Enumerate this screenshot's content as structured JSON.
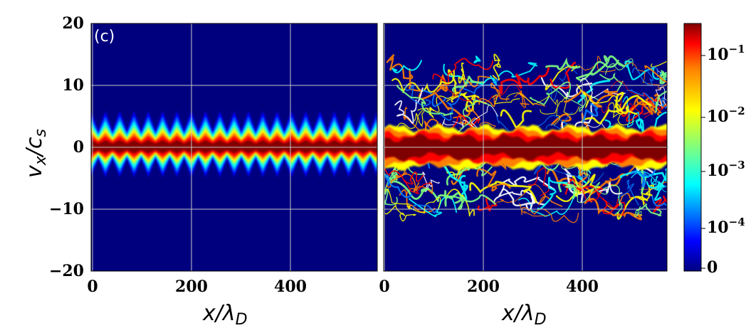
{
  "figure": {
    "panel_label": "(c)",
    "xlabel_main": "x/λ",
    "xlabel_sub": "D",
    "ylabel_main": "v",
    "ylabel_sub1": "x",
    "ylabel_slash": "/c",
    "ylabel_sub2": "s"
  },
  "colormap": [
    "#00007f",
    "#0000ff",
    "#007fff",
    "#00ffff",
    "#7fff7f",
    "#ffff00",
    "#ff7f00",
    "#ff0000",
    "#7f0000"
  ],
  "colorbar": {
    "scale": "log",
    "ticks": [
      {
        "base": "10",
        "exp": "−1"
      },
      {
        "base": "10",
        "exp": "−2"
      },
      {
        "base": "10",
        "exp": "−3"
      },
      {
        "base": "10",
        "exp": "−4"
      },
      {
        "base": "0",
        "exp": ""
      }
    ]
  },
  "chart_data": [
    {
      "type": "heatmap",
      "panel": "left",
      "xlabel": "x/λD",
      "ylabel": "vx/cs",
      "xlim": [
        0,
        570
      ],
      "ylim": [
        -20,
        20
      ],
      "xticks": [
        0,
        200,
        400
      ],
      "yticks": [
        20,
        10,
        0,
        -10,
        -20
      ],
      "grid": true,
      "annotation": "(c)",
      "description_values": {
        "ripple_count": 20,
        "beam_center_vx": [
          -2.2,
          2.2
        ],
        "ripple_peak_vx": [
          -4.8,
          5.8
        ]
      }
    },
    {
      "type": "heatmap",
      "panel": "right",
      "xlabel": "x/λD",
      "ylabel": "vx/cs",
      "xlim": [
        0,
        570
      ],
      "ylim": [
        -20,
        20
      ],
      "xticks": [
        0,
        200,
        400
      ],
      "yticks": [
        20,
        10,
        0,
        -10,
        -20
      ],
      "grid": true,
      "description_values": {
        "core_halfwidth_vx": 1.5,
        "turbulent_extent_vx": [
          -11,
          14
        ]
      }
    }
  ]
}
